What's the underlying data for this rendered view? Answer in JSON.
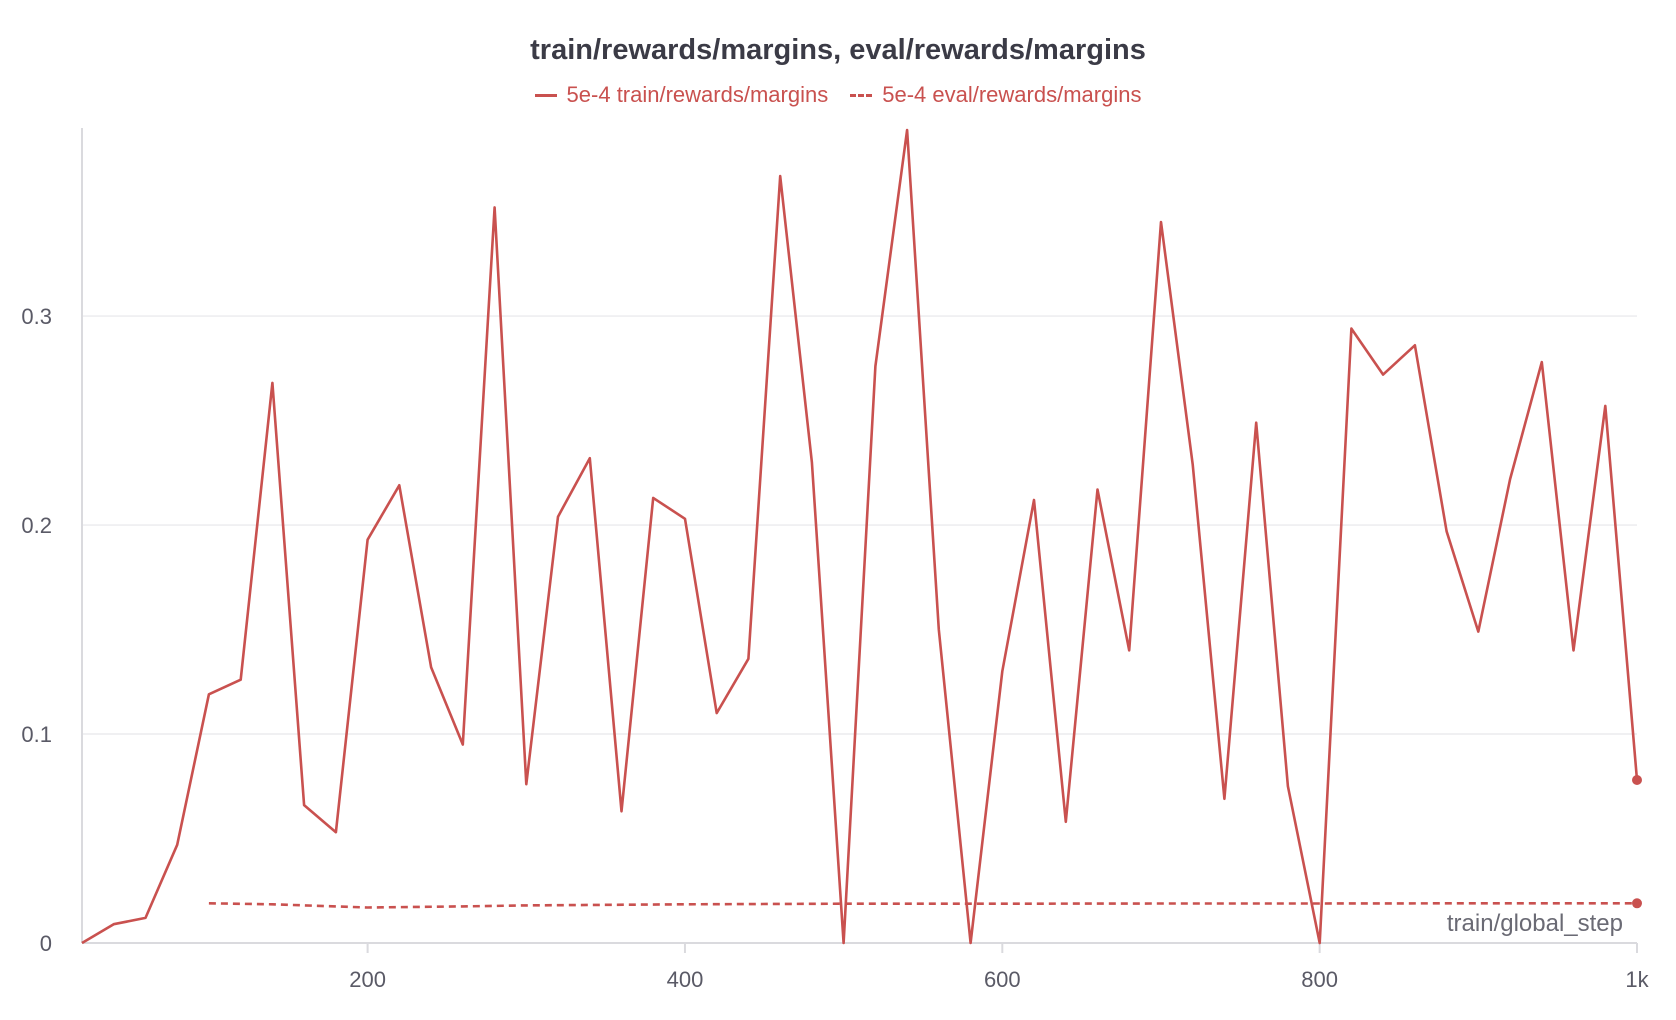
{
  "chart_data": {
    "type": "line",
    "title": "train/rewards/margins, eval/rewards/margins",
    "xlabel": "train/global_step",
    "ylabel": "",
    "xlim": [
      20,
      1000
    ],
    "ylim": [
      0,
      0.39
    ],
    "x_ticks": [
      200,
      400,
      600,
      800,
      1000
    ],
    "x_tick_labels": [
      "200",
      "400",
      "600",
      "800",
      "1k"
    ],
    "y_ticks": [
      0,
      0.1,
      0.2,
      0.3
    ],
    "y_tick_labels": [
      "0",
      "0.1",
      "0.2",
      "0.3"
    ],
    "grid": true,
    "legend_position": "top-center",
    "series": [
      {
        "name": "5e-4 train/rewards/margins",
        "color": "#c9514f",
        "style": "solid",
        "x": [
          20,
          40,
          60,
          80,
          100,
          120,
          140,
          160,
          180,
          200,
          220,
          240,
          260,
          280,
          300,
          320,
          340,
          360,
          380,
          400,
          420,
          440,
          460,
          480,
          500,
          520,
          540,
          560,
          580,
          600,
          620,
          640,
          660,
          680,
          700,
          720,
          740,
          760,
          780,
          800,
          820,
          840,
          860,
          880,
          900,
          920,
          940,
          960,
          980,
          1000
        ],
        "values": [
          0.0,
          0.009,
          0.012,
          0.047,
          0.119,
          0.126,
          0.268,
          0.066,
          0.053,
          0.193,
          0.219,
          0.132,
          0.095,
          0.352,
          0.076,
          0.204,
          0.232,
          0.063,
          0.213,
          0.203,
          0.11,
          0.136,
          0.367,
          0.23,
          0.0,
          0.276,
          0.389,
          0.15,
          0.0,
          0.13,
          0.212,
          0.058,
          0.217,
          0.14,
          0.345,
          0.229,
          0.069,
          0.249,
          0.075,
          0.0,
          0.294,
          0.272,
          0.286,
          0.197,
          0.149,
          0.222,
          0.278,
          0.14,
          0.257,
          0.078
        ]
      },
      {
        "name": "5e-4 eval/rewards/margins",
        "color": "#c9514f",
        "style": "dashed",
        "x": [
          100,
          140,
          200,
          260,
          300,
          400,
          500,
          600,
          700,
          800,
          900,
          1000
        ],
        "values": [
          0.019,
          0.0185,
          0.017,
          0.0175,
          0.018,
          0.0185,
          0.0188,
          0.0188,
          0.0189,
          0.0189,
          0.019,
          0.019
        ]
      }
    ]
  }
}
